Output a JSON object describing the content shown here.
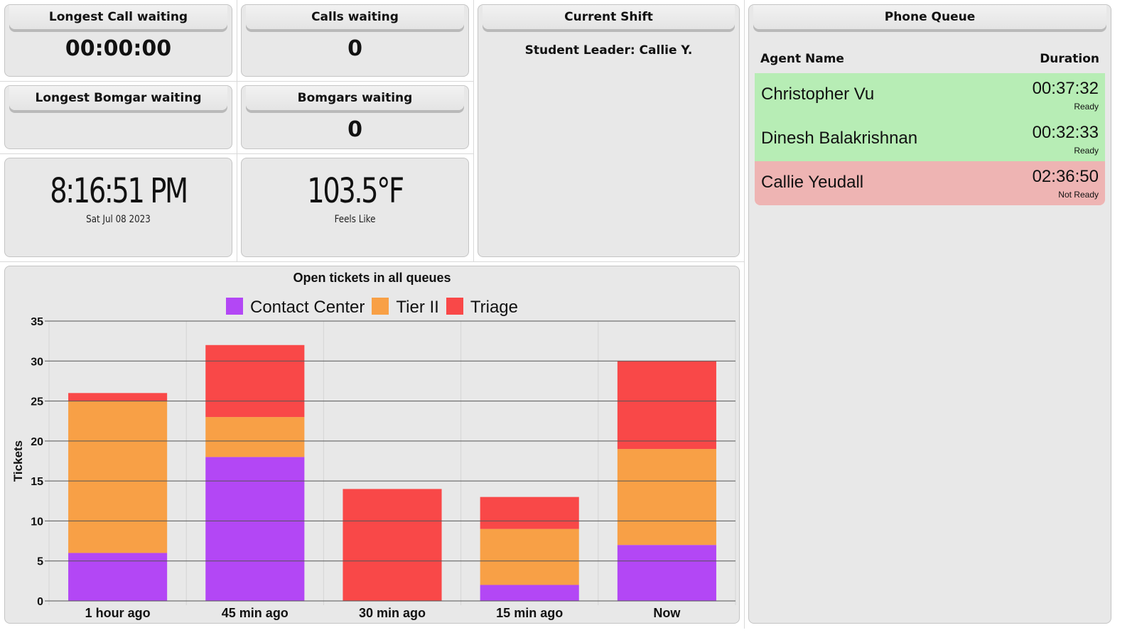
{
  "longest_call": {
    "title": "Longest Call waiting",
    "value": "00:00:00"
  },
  "calls_waiting": {
    "title": "Calls waiting",
    "value": "0"
  },
  "longest_bomgar": {
    "title": "Longest Bomgar waiting",
    "value": ""
  },
  "bomgars_waiting": {
    "title": "Bomgars waiting",
    "value": "0"
  },
  "clock": {
    "time": "8:16:51 PM",
    "date": "Sat Jul 08 2023"
  },
  "weather": {
    "temp": "103.5°F",
    "label": "Feels Like"
  },
  "current_shift": {
    "title": "Current Shift",
    "text": "Student Leader: Callie Y."
  },
  "phone_queue": {
    "title": "Phone Queue",
    "col_agent": "Agent Name",
    "col_duration": "Duration",
    "agents": [
      {
        "name": "Christopher Vu",
        "duration": "00:37:32",
        "status": "Ready",
        "color": "#b7edb5"
      },
      {
        "name": "Dinesh Balakrishnan",
        "duration": "00:32:33",
        "status": "Ready",
        "color": "#b7edb5"
      },
      {
        "name": "Callie Yeudall",
        "duration": "02:36:50",
        "status": "Not Ready",
        "color": "#eeb4b3"
      }
    ]
  },
  "chart_data": {
    "type": "bar",
    "stacked": true,
    "title": "Open tickets in all queues",
    "xlabel": "",
    "ylabel": "Tickets",
    "ylim": [
      0,
      35
    ],
    "yticks": [
      0,
      5,
      10,
      15,
      20,
      25,
      30,
      35
    ],
    "grid": true,
    "legend_position": "top",
    "categories": [
      "1 hour ago",
      "45 min ago",
      "30 min ago",
      "15 min ago",
      "Now"
    ],
    "series": [
      {
        "name": "Contact Center",
        "color": "#b347f5",
        "values": [
          6,
          18,
          0,
          2,
          7
        ]
      },
      {
        "name": "Tier II",
        "color": "#f8a046",
        "values": [
          19,
          5,
          0,
          7,
          12
        ]
      },
      {
        "name": "Triage",
        "color": "#f94848",
        "values": [
          1,
          9,
          14,
          4,
          11
        ]
      }
    ]
  }
}
